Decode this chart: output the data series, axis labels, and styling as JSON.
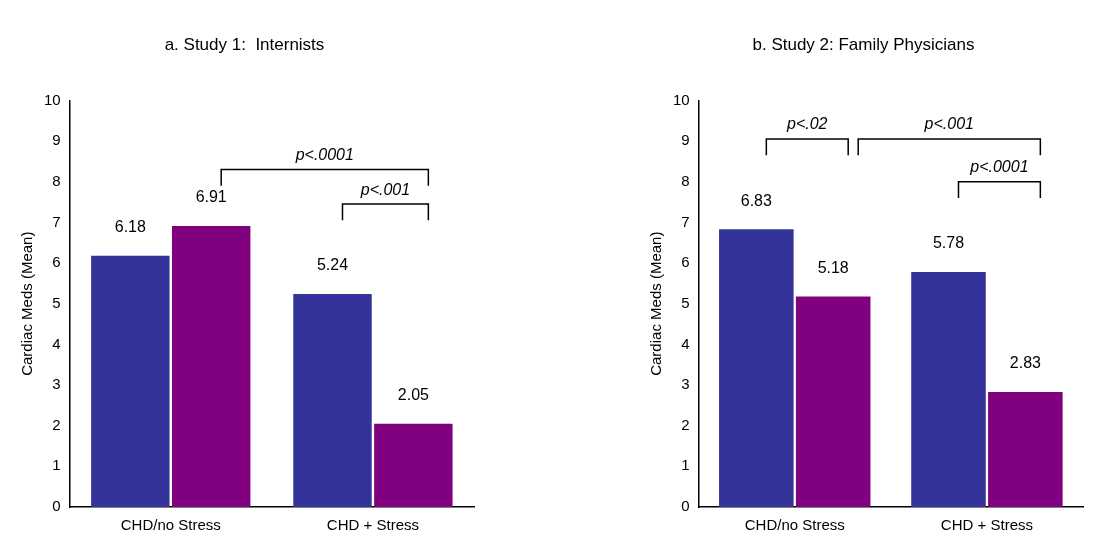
{
  "chart_data": [
    {
      "type": "bar",
      "title": "a. Study 1:  Internists",
      "ylabel": "Cardiac Meds (Mean)",
      "categories": [
        "CHD/no Stress",
        "CHD + Stress"
      ],
      "series": [
        {
          "color": "#333399",
          "values": [
            6.18,
            5.24
          ]
        },
        {
          "color": "#800080",
          "values": [
            6.91,
            2.05
          ]
        }
      ],
      "ylim": [
        0,
        10
      ],
      "yticks": [
        0,
        1,
        2,
        3,
        4,
        5,
        6,
        7,
        8,
        9,
        10
      ],
      "grid": false,
      "legend": false,
      "data_labels": true,
      "annotations": [
        "p<.0001",
        "p<.001"
      ]
    },
    {
      "type": "bar",
      "title": "b. Study 2: Family Physicians",
      "ylabel": "Cardiac Meds (Mean)",
      "categories": [
        "CHD/no Stress",
        "CHD + Stress"
      ],
      "series": [
        {
          "color": "#333399",
          "values": [
            6.83,
            5.78
          ]
        },
        {
          "color": "#800080",
          "values": [
            5.18,
            2.83
          ]
        }
      ],
      "ylim": [
        0,
        10
      ],
      "yticks": [
        0,
        1,
        2,
        3,
        4,
        5,
        6,
        7,
        8,
        9,
        10
      ],
      "grid": false,
      "legend": false,
      "data_labels": true,
      "annotations": [
        "p<.02",
        "p<.001",
        "p<.0001"
      ]
    }
  ]
}
